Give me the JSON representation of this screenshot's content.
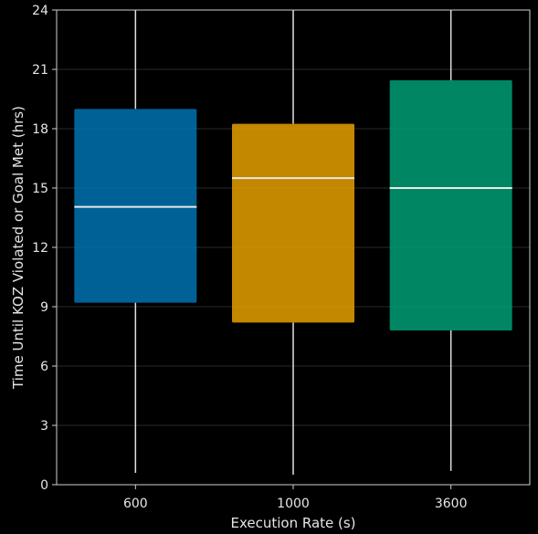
{
  "chart_data": {
    "type": "box",
    "title": "",
    "xlabel": "Execution Rate (s)",
    "ylabel": "Time Until KOZ Violated or Goal Met (hrs)",
    "ylim": [
      0,
      24
    ],
    "yticks": [
      0,
      3,
      6,
      9,
      12,
      15,
      18,
      21,
      24
    ],
    "grid": true,
    "categories": [
      "600",
      "1000",
      "3600"
    ],
    "boxes": [
      {
        "category": "600",
        "whisker_low": 0.6,
        "q1": 9.2,
        "median": 14.05,
        "q3": 19.0,
        "whisker_high": 24,
        "color": "#0072b2"
      },
      {
        "category": "1000",
        "whisker_low": 0.5,
        "q1": 8.2,
        "median": 15.5,
        "q3": 18.25,
        "whisker_high": 24,
        "color": "#e69f00"
      },
      {
        "category": "3600",
        "whisker_low": 0.7,
        "q1": 7.8,
        "median": 15.0,
        "q3": 20.45,
        "whisker_high": 24,
        "color": "#009e73"
      }
    ]
  }
}
